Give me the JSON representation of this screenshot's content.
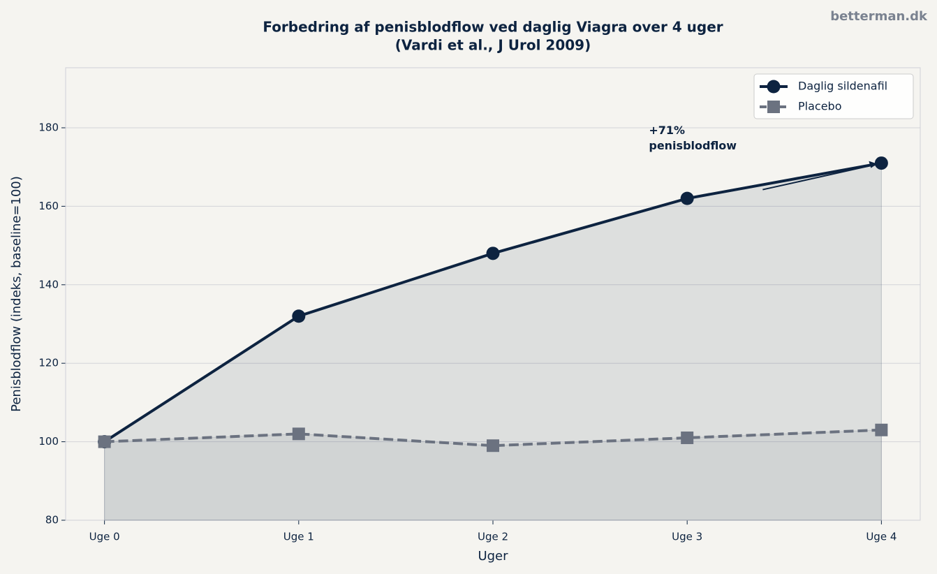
{
  "chart_data": {
    "type": "line",
    "title": [
      "Forbedring af penisblodflow ved daglig Viagra over 4 uger",
      "(Vardi et al., J Urol 2009)"
    ],
    "watermark": "betterman.dk",
    "x_label": "Uger",
    "y_label": "Penisblodflow (indeks, baseline=100)",
    "categories": [
      "Uge 0",
      "Uge 1",
      "Uge 2",
      "Uge 3",
      "Uge 4"
    ],
    "series": [
      {
        "name": "Daglig sildenafil",
        "color": "#0d2340",
        "linestyle": "solid",
        "marker": "circle",
        "values": [
          100,
          132,
          148,
          162,
          171
        ]
      },
      {
        "name": "Placebo",
        "color": "#6b7280",
        "linestyle": "dashed",
        "marker": "square",
        "values": [
          100,
          102,
          99,
          101,
          103
        ]
      }
    ],
    "ylim": [
      80,
      195.3
    ],
    "yticks": [
      80,
      100,
      120,
      140,
      160,
      180
    ],
    "grid": true,
    "legend": "upper right",
    "annotation": {
      "text": [
        "+71%",
        "penisblodflow"
      ],
      "series": 0,
      "index": 4
    }
  }
}
